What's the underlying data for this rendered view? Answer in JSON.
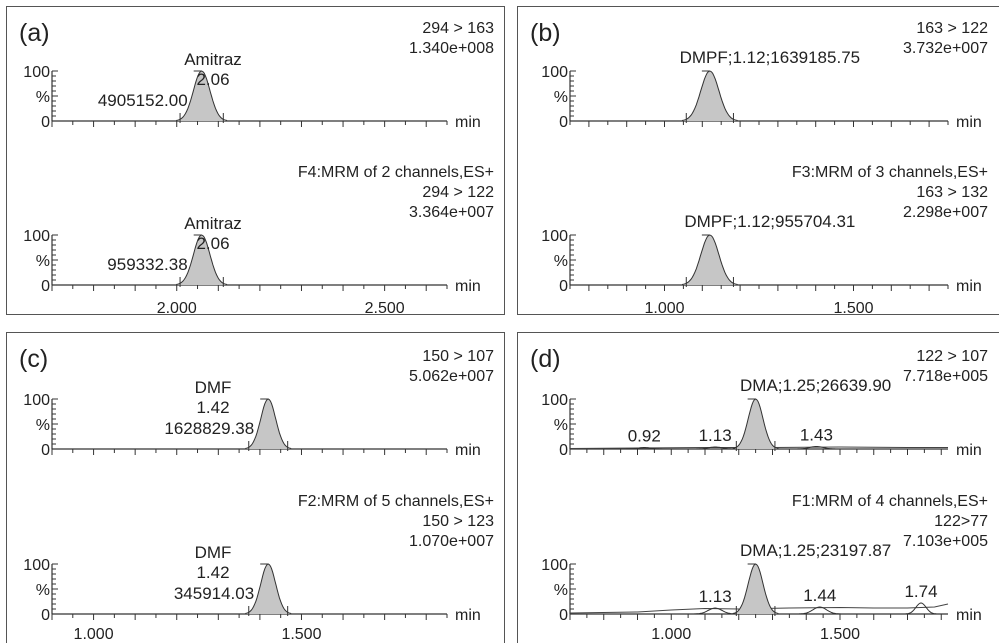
{
  "chart_data": [
    {
      "id": "a",
      "panel_label": "(a)",
      "type": "area",
      "xlim": [
        1.7,
        2.65
      ],
      "x_ticks": [
        {
          "v": 2.0,
          "label": "2.000"
        },
        {
          "v": 2.5,
          "label": "2.500"
        }
      ],
      "x_unit": "min",
      "y_tick_labels": [
        "100",
        "%",
        "0"
      ],
      "traces": [
        {
          "channel": "294 > 163",
          "intensity": "1.340e+008",
          "header": "",
          "peaks": [
            {
              "rt": 2.06,
              "width": 0.02,
              "height": 100,
              "shaded": true,
              "lines": [
                "Amitraz",
                "2.06",
                "4905152.00"
              ]
            }
          ],
          "baseline": []
        },
        {
          "channel": "294 > 122",
          "intensity": "3.364e+007",
          "header": "F4:MRM of 2 channels,ES+",
          "peaks": [
            {
              "rt": 2.06,
              "width": 0.02,
              "height": 100,
              "shaded": true,
              "lines": [
                "Amitraz",
                "2.06",
                "959332.38"
              ]
            }
          ],
          "baseline": []
        }
      ]
    },
    {
      "id": "b",
      "panel_label": "(b)",
      "type": "area",
      "xlim": [
        0.75,
        1.75
      ],
      "x_ticks": [
        {
          "v": 1.0,
          "label": "1.000"
        },
        {
          "v": 1.5,
          "label": "1.500"
        }
      ],
      "x_unit": "min",
      "y_tick_labels": [
        "100",
        "%",
        "0"
      ],
      "traces": [
        {
          "channel": "163 > 122",
          "intensity": "3.732e+007",
          "header": "",
          "peaks": [
            {
              "rt": 1.12,
              "width": 0.024,
              "height": 100,
              "shaded": true,
              "lines": [
                "DMPF;1.12;1639185.75"
              ]
            }
          ],
          "baseline": []
        },
        {
          "channel": "163 > 132",
          "intensity": "2.298e+007",
          "header": "F3:MRM of 3 channels,ES+",
          "peaks": [
            {
              "rt": 1.12,
              "width": 0.024,
              "height": 100,
              "shaded": true,
              "lines": [
                "DMPF;1.12;955704.31"
              ]
            }
          ],
          "baseline": []
        }
      ]
    },
    {
      "id": "c",
      "panel_label": "(c)",
      "type": "area",
      "xlim": [
        0.9,
        1.85
      ],
      "x_ticks": [
        {
          "v": 1.0,
          "label": "1.000"
        },
        {
          "v": 1.5,
          "label": "1.500"
        }
      ],
      "x_unit": "min",
      "y_tick_labels": [
        "100",
        "%",
        "0"
      ],
      "traces": [
        {
          "channel": "150 > 107",
          "intensity": "5.062e+007",
          "header": "",
          "peaks": [
            {
              "rt": 1.42,
              "width": 0.018,
              "height": 100,
              "shaded": true,
              "lines": [
                "DMF",
                "1.42",
                "1628829.38"
              ]
            }
          ],
          "baseline": []
        },
        {
          "channel": "150 > 123",
          "intensity": "1.070e+007",
          "header": "F2:MRM of 5 channels,ES+",
          "peaks": [
            {
              "rt": 1.42,
              "width": 0.018,
              "height": 100,
              "shaded": true,
              "lines": [
                "DMF",
                "1.42",
                "345914.03"
              ]
            }
          ],
          "baseline": []
        }
      ]
    },
    {
      "id": "d",
      "panel_label": "(d)",
      "type": "area",
      "xlim": [
        0.7,
        1.82
      ],
      "x_ticks": [
        {
          "v": 1.0,
          "label": "1.000"
        },
        {
          "v": 1.5,
          "label": "1.500"
        }
      ],
      "x_unit": "min",
      "y_tick_labels": [
        "100",
        "%",
        "0"
      ],
      "traces": [
        {
          "channel": "122 > 107",
          "intensity": "7.718e+005",
          "header": "",
          "peaks": [
            {
              "rt": 1.25,
              "width": 0.022,
              "height": 100,
              "shaded": true,
              "lines": [
                "DMA;1.25;26639.90"
              ]
            },
            {
              "rt": 0.92,
              "width": 0.02,
              "height": 3,
              "shaded": false,
              "lines": [
                "0.92"
              ]
            },
            {
              "rt": 1.13,
              "width": 0.02,
              "height": 4,
              "shaded": false,
              "lines": [
                "1.13"
              ]
            },
            {
              "rt": 1.43,
              "width": 0.02,
              "height": 5,
              "shaded": false,
              "lines": [
                "1.43"
              ]
            }
          ],
          "baseline": [
            [
              0.7,
              1
            ],
            [
              0.9,
              2
            ],
            [
              1.1,
              3
            ],
            [
              1.3,
              3
            ],
            [
              1.5,
              4
            ],
            [
              1.7,
              3
            ],
            [
              1.82,
              3
            ]
          ]
        },
        {
          "channel": "122>77",
          "intensity": "7.103e+005",
          "header": "F1:MRM of 4 channels,ES+",
          "peaks": [
            {
              "rt": 1.25,
              "width": 0.022,
              "height": 100,
              "shaded": true,
              "lines": [
                "DMA;1.25;23197.87"
              ]
            },
            {
              "rt": 1.13,
              "width": 0.02,
              "height": 12,
              "shaded": false,
              "lines": [
                "1.13"
              ]
            },
            {
              "rt": 1.44,
              "width": 0.02,
              "height": 14,
              "shaded": false,
              "lines": [
                "1.44"
              ]
            },
            {
              "rt": 1.74,
              "width": 0.015,
              "height": 22,
              "shaded": false,
              "lines": [
                "1.74"
              ]
            }
          ],
          "baseline": [
            [
              0.7,
              2
            ],
            [
              0.9,
              4
            ],
            [
              1.0,
              8
            ],
            [
              1.1,
              11
            ],
            [
              1.2,
              10
            ],
            [
              1.35,
              12
            ],
            [
              1.5,
              13
            ],
            [
              1.6,
              12
            ],
            [
              1.7,
              12
            ],
            [
              1.78,
              14
            ],
            [
              1.82,
              20
            ]
          ]
        }
      ]
    }
  ]
}
